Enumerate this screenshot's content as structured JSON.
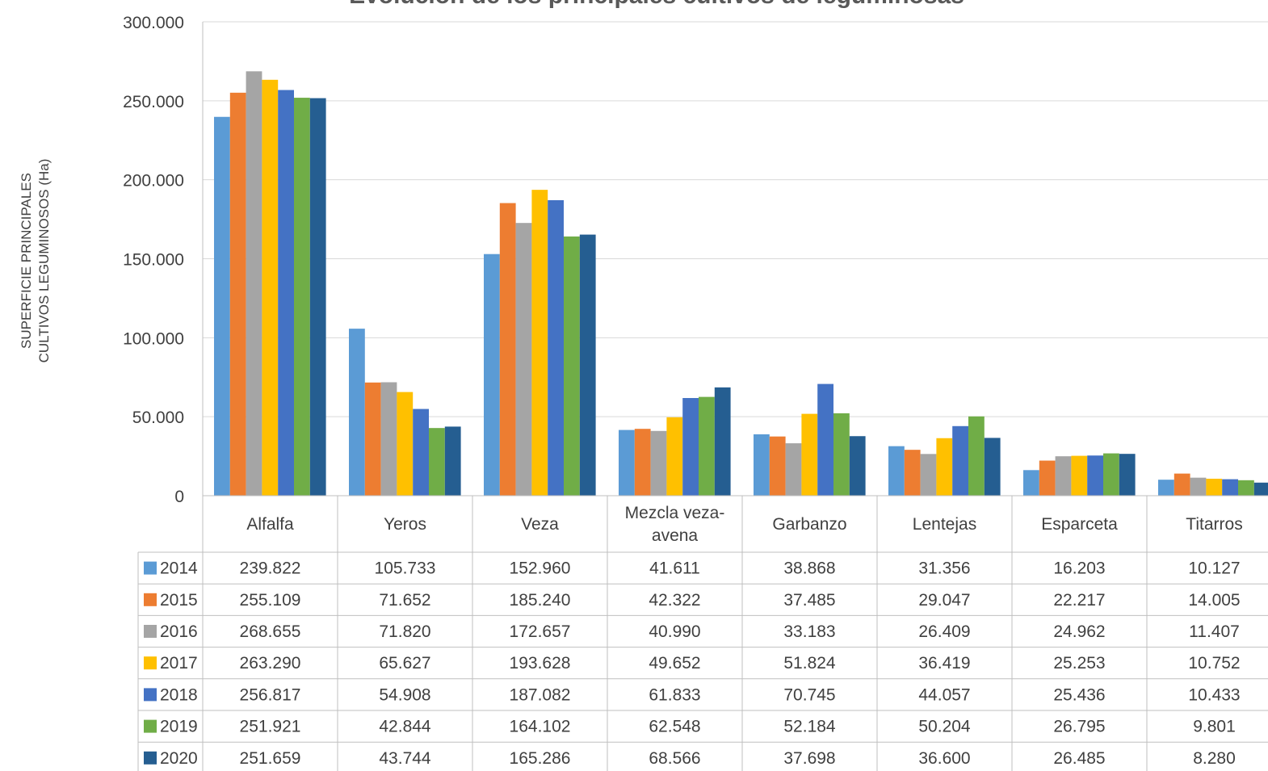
{
  "chart_data": {
    "type": "bar",
    "title": "Evolución de los principales cultivos de leguminosas",
    "ylabel": [
      "SUPERFICIE PRINCIPALES",
      "CULTIVOS LEGUMINOSOS (Ha)"
    ],
    "xlabel": "",
    "ylim": [
      0,
      300000
    ],
    "yticks": [
      0,
      50000,
      100000,
      150000,
      200000,
      250000,
      300000
    ],
    "ytick_labels": [
      "0",
      "50.000",
      "100.000",
      "150.000",
      "200.000",
      "250.000",
      "300.000"
    ],
    "grid": true,
    "legend": "data-table-left",
    "categories": [
      [
        "Alfalfa"
      ],
      [
        "Yeros"
      ],
      [
        "Veza"
      ],
      [
        "Mezcla veza-",
        "avena"
      ],
      [
        "Garbanzo"
      ],
      [
        "Lentejas"
      ],
      [
        "Esparceta"
      ],
      [
        "Titarros"
      ]
    ],
    "series": [
      {
        "name": "2014",
        "color": "#5B9BD5",
        "values": [
          239822,
          105733,
          152960,
          41611,
          38868,
          31356,
          16203,
          10127
        ],
        "labels": [
          "239.822",
          "105.733",
          "152.960",
          "41.611",
          "38.868",
          "31.356",
          "16.203",
          "10.127"
        ]
      },
      {
        "name": "2015",
        "color": "#ED7D31",
        "values": [
          255109,
          71652,
          185240,
          42322,
          37485,
          29047,
          22217,
          14005
        ],
        "labels": [
          "255.109",
          "71.652",
          "185.240",
          "42.322",
          "37.485",
          "29.047",
          "22.217",
          "14.005"
        ]
      },
      {
        "name": "2016",
        "color": "#A5A5A5",
        "values": [
          268655,
          71820,
          172657,
          40990,
          33183,
          26409,
          24962,
          11407
        ],
        "labels": [
          "268.655",
          "71.820",
          "172.657",
          "40.990",
          "33.183",
          "26.409",
          "24.962",
          "11.407"
        ]
      },
      {
        "name": "2017",
        "color": "#FFC000",
        "values": [
          263290,
          65627,
          193628,
          49652,
          51824,
          36419,
          25253,
          10752
        ],
        "labels": [
          "263.290",
          "65.627",
          "193.628",
          "49.652",
          "51.824",
          "36.419",
          "25.253",
          "10.752"
        ]
      },
      {
        "name": "2018",
        "color": "#4472C4",
        "values": [
          256817,
          54908,
          187082,
          61833,
          70745,
          44057,
          25436,
          10433
        ],
        "labels": [
          "256.817",
          "54.908",
          "187.082",
          "61.833",
          "70.745",
          "44.057",
          "25.436",
          "10.433"
        ]
      },
      {
        "name": "2019",
        "color": "#70AD47",
        "values": [
          251921,
          42844,
          164102,
          62548,
          52184,
          50204,
          26795,
          9801
        ],
        "labels": [
          "251.921",
          "42.844",
          "164.102",
          "62.548",
          "52.184",
          "50.204",
          "26.795",
          "9.801"
        ]
      },
      {
        "name": "2020",
        "color": "#255E91",
        "values": [
          251659,
          43744,
          165286,
          68566,
          37698,
          36600,
          26485,
          8280
        ],
        "labels": [
          "251.659",
          "43.744",
          "165.286",
          "68.566",
          "37.698",
          "36.600",
          "26.485",
          "8.280"
        ]
      }
    ]
  }
}
